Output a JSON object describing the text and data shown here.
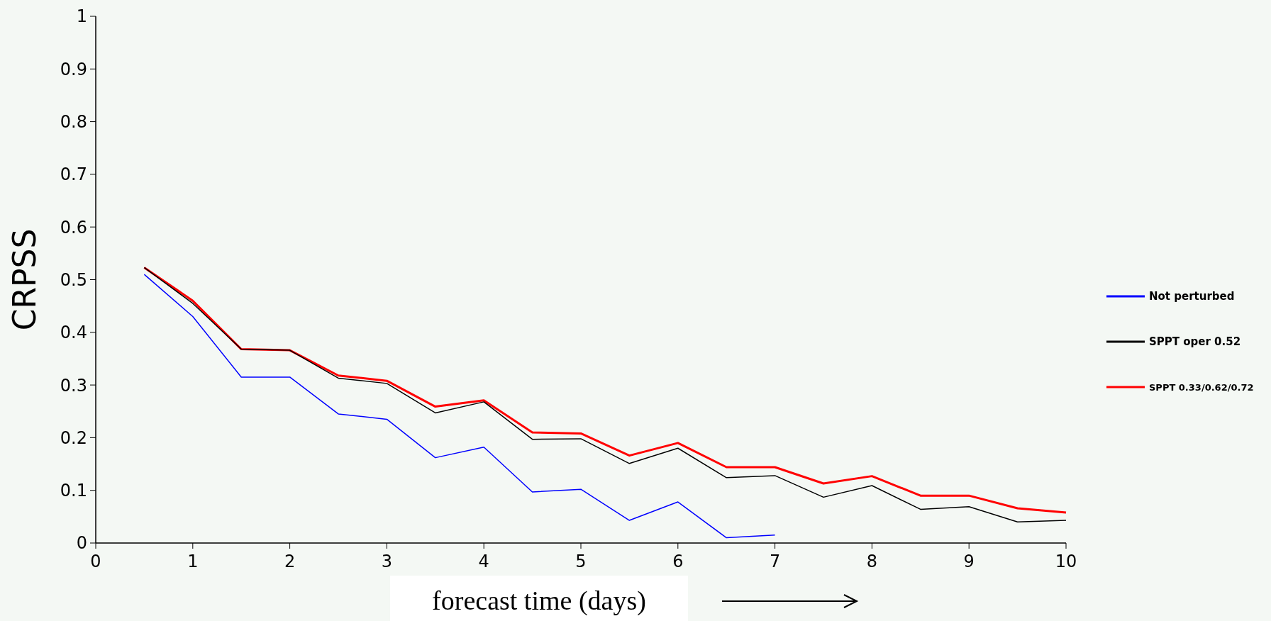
{
  "chart_data": {
    "type": "line",
    "xlabel": "forecast time (days)",
    "ylabel": "CRPSS",
    "xlim": [
      0,
      10
    ],
    "xticks": [
      0,
      1,
      2,
      3,
      4,
      5,
      6,
      7,
      8,
      9,
      10
    ],
    "ylim": [
      0,
      1
    ],
    "yticks": [
      0,
      0.1,
      0.2,
      0.3,
      0.4,
      0.5,
      0.6,
      0.7,
      0.8,
      0.9,
      1
    ],
    "grid": false,
    "legend": "right",
    "marker": "none",
    "line_style": "solid",
    "series": [
      {
        "name": "Not perturbed",
        "color": "#0000ff",
        "x": [
          0.5,
          1,
          1.5,
          2,
          2.5,
          3,
          3.5,
          4,
          4.5,
          5,
          5.5,
          6,
          6.5,
          7
        ],
        "values": [
          0.51,
          0.43,
          0.315,
          0.315,
          0.245,
          0.235,
          0.162,
          0.182,
          0.097,
          0.102,
          0.043,
          0.078,
          0.01,
          0.015
        ]
      },
      {
        "name": "SPPT oper 0.52",
        "color": "#000000",
        "x": [
          0.5,
          1,
          1.5,
          2,
          2.5,
          3,
          3.5,
          4,
          4.5,
          5,
          5.5,
          6,
          6.5,
          7,
          7.5,
          8,
          8.5,
          9,
          9.5,
          10
        ],
        "values": [
          0.523,
          0.455,
          0.368,
          0.366,
          0.313,
          0.303,
          0.247,
          0.268,
          0.197,
          0.198,
          0.151,
          0.18,
          0.124,
          0.128,
          0.087,
          0.109,
          0.064,
          0.069,
          0.04,
          0.043
        ]
      },
      {
        "name": "SPPT 0.33/0.62/0.72",
        "color": "#ff0000",
        "x": [
          0.5,
          1,
          1.5,
          2,
          2.5,
          3,
          3.5,
          4,
          4.5,
          5,
          5.5,
          6,
          6.5,
          7,
          7.5,
          8,
          8.5,
          9,
          9.5,
          10
        ],
        "values": [
          0.523,
          0.46,
          0.368,
          0.366,
          0.318,
          0.308,
          0.259,
          0.271,
          0.21,
          0.208,
          0.166,
          0.19,
          0.144,
          0.144,
          0.113,
          0.127,
          0.09,
          0.09,
          0.066,
          0.058
        ]
      }
    ]
  }
}
